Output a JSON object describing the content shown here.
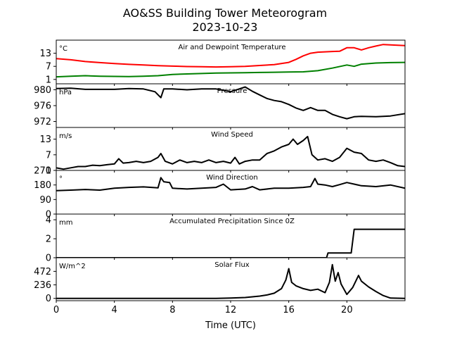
{
  "title": "AO&SS Building Tower Meteorogram",
  "subtitle": "2023-10-23",
  "xlabel": "Time (UTC)",
  "chart_data": {
    "type": "line",
    "x_range": [
      0,
      24
    ],
    "x_ticks": [
      0,
      4,
      8,
      12,
      16,
      20
    ],
    "x_tick_labels": [
      "0",
      "4",
      "8",
      "12",
      "16",
      "20"
    ],
    "panels": [
      {
        "id": "temp",
        "title": "Air and Dewpoint Temperature",
        "unit": "°C",
        "ylim": [
          -1,
          19
        ],
        "yticks": [
          1,
          7,
          13
        ],
        "ytick_labels": [
          "1",
          "7",
          "13"
        ],
        "series": [
          {
            "color": "#ff0000",
            "points": [
              [
                0,
                10.5
              ],
              [
                1,
                10
              ],
              [
                2,
                9.2
              ],
              [
                3,
                8.7
              ],
              [
                4,
                8.3
              ],
              [
                5,
                7.9
              ],
              [
                6,
                7.6
              ],
              [
                7,
                7.3
              ],
              [
                8,
                7.1
              ],
              [
                9,
                6.9
              ],
              [
                10,
                6.8
              ],
              [
                11,
                6.7
              ],
              [
                12,
                6.8
              ],
              [
                13,
                7
              ],
              [
                14,
                7.4
              ],
              [
                15,
                7.8
              ],
              [
                16,
                8.8
              ],
              [
                16.5,
                10.2
              ],
              [
                17,
                11.8
              ],
              [
                17.5,
                13
              ],
              [
                18,
                13.5
              ],
              [
                19,
                13.8
              ],
              [
                19.5,
                13.9
              ],
              [
                20,
                15.5
              ],
              [
                20.5,
                15.5
              ],
              [
                21,
                14.5
              ],
              [
                21.5,
                15.5
              ],
              [
                22,
                16.3
              ],
              [
                22.5,
                17
              ],
              [
                23,
                16.8
              ],
              [
                24,
                16.5
              ]
            ]
          },
          {
            "color": "#008000",
            "points": [
              [
                0,
                2.2
              ],
              [
                1,
                2.5
              ],
              [
                2,
                2.7
              ],
              [
                3,
                2.5
              ],
              [
                4,
                2.4
              ],
              [
                5,
                2.3
              ],
              [
                6,
                2.5
              ],
              [
                7,
                2.7
              ],
              [
                8,
                3.3
              ],
              [
                9,
                3.5
              ],
              [
                10,
                3.7
              ],
              [
                11,
                3.9
              ],
              [
                12,
                4
              ],
              [
                13,
                4.1
              ],
              [
                14,
                4.2
              ],
              [
                15,
                4.3
              ],
              [
                16,
                4.4
              ],
              [
                17,
                4.5
              ],
              [
                18,
                5
              ],
              [
                19,
                6.2
              ],
              [
                20,
                7.6
              ],
              [
                20.5,
                7
              ],
              [
                21,
                8
              ],
              [
                22,
                8.5
              ],
              [
                23,
                8.7
              ],
              [
                24,
                8.8
              ]
            ]
          }
        ]
      },
      {
        "id": "pressure",
        "title": "Pressure",
        "unit": "hPa",
        "ylim": [
          970.5,
          981.5
        ],
        "yticks": [
          972,
          976,
          980
        ],
        "ytick_labels": [
          "972",
          "976",
          "980"
        ],
        "series": [
          {
            "color": "#000000",
            "points": [
              [
                0,
                980.3
              ],
              [
                1,
                980.4
              ],
              [
                2,
                980.1
              ],
              [
                3,
                980.1
              ],
              [
                4,
                980.1
              ],
              [
                5,
                980.3
              ],
              [
                6,
                980.2
              ],
              [
                6.8,
                979.5
              ],
              [
                7.2,
                978
              ],
              [
                7.4,
                980.2
              ],
              [
                8,
                980.2
              ],
              [
                9,
                980
              ],
              [
                10,
                980.2
              ],
              [
                11,
                980.2
              ],
              [
                12,
                979.5
              ],
              [
                12.5,
                980.1
              ],
              [
                13,
                980.7
              ],
              [
                13.5,
                979.6
              ],
              [
                14,
                978.7
              ],
              [
                14.5,
                977.8
              ],
              [
                15,
                977.3
              ],
              [
                15.5,
                977
              ],
              [
                16,
                976.3
              ],
              [
                16.5,
                975.4
              ],
              [
                17,
                974.8
              ],
              [
                17.5,
                975.5
              ],
              [
                18,
                974.8
              ],
              [
                18.5,
                974.8
              ],
              [
                19,
                973.8
              ],
              [
                19.5,
                973.2
              ],
              [
                20,
                972.7
              ],
              [
                20.5,
                973.2
              ],
              [
                21,
                973.3
              ],
              [
                22,
                973.2
              ],
              [
                23,
                973.4
              ],
              [
                24,
                974
              ]
            ]
          }
        ]
      },
      {
        "id": "wind_speed",
        "title": "Wind Speed",
        "unit": "m/s",
        "ylim": [
          1,
          17.5
        ],
        "yticks": [
          1,
          7,
          13
        ],
        "ytick_labels": [
          "1",
          "7",
          "13"
        ],
        "series": [
          {
            "color": "#000000",
            "points": [
              [
                0,
                2
              ],
              [
                0.5,
                1.5
              ],
              [
                1,
                2
              ],
              [
                1.5,
                2.5
              ],
              [
                2,
                2.5
              ],
              [
                2.5,
                3
              ],
              [
                3,
                2.8
              ],
              [
                3.5,
                3.2
              ],
              [
                4,
                3.5
              ],
              [
                4.3,
                5.5
              ],
              [
                4.6,
                3.8
              ],
              [
                5,
                4
              ],
              [
                5.5,
                4.5
              ],
              [
                6,
                4
              ],
              [
                6.5,
                4.5
              ],
              [
                7,
                6
              ],
              [
                7.2,
                7.5
              ],
              [
                7.5,
                4.5
              ],
              [
                8,
                3.5
              ],
              [
                8.5,
                5
              ],
              [
                9,
                4
              ],
              [
                9.5,
                4.5
              ],
              [
                10,
                4
              ],
              [
                10.5,
                5
              ],
              [
                11,
                4
              ],
              [
                11.5,
                4.5
              ],
              [
                12,
                3.8
              ],
              [
                12.3,
                6
              ],
              [
                12.6,
                3.5
              ],
              [
                13,
                4.5
              ],
              [
                13.5,
                5
              ],
              [
                14,
                5
              ],
              [
                14.5,
                7.5
              ],
              [
                15,
                8.5
              ],
              [
                15.5,
                10
              ],
              [
                16,
                11
              ],
              [
                16.3,
                13
              ],
              [
                16.6,
                11
              ],
              [
                17,
                12.5
              ],
              [
                17.3,
                14
              ],
              [
                17.6,
                7
              ],
              [
                18,
                5
              ],
              [
                18.5,
                5.5
              ],
              [
                19,
                4.5
              ],
              [
                19.5,
                6
              ],
              [
                20,
                9.5
              ],
              [
                20.5,
                8
              ],
              [
                21,
                7.5
              ],
              [
                21.5,
                5
              ],
              [
                22,
                4.5
              ],
              [
                22.5,
                5
              ],
              [
                23,
                4
              ],
              [
                23.5,
                2.8
              ],
              [
                24,
                2.5
              ]
            ]
          }
        ]
      },
      {
        "id": "wind_dir",
        "title": "Wind Direction",
        "unit": "°",
        "ylim": [
          0,
          270
        ],
        "yticks": [
          0,
          90,
          180,
          270
        ],
        "ytick_labels": [
          "0",
          "90",
          "180",
          "270"
        ],
        "series": [
          {
            "color": "#000000",
            "points": [
              [
                0,
                145
              ],
              [
                1,
                148
              ],
              [
                2,
                152
              ],
              [
                3,
                148
              ],
              [
                4,
                160
              ],
              [
                5,
                165
              ],
              [
                6,
                168
              ],
              [
                7,
                162
              ],
              [
                7.2,
                225
              ],
              [
                7.4,
                200
              ],
              [
                7.8,
                195
              ],
              [
                8,
                160
              ],
              [
                9,
                155
              ],
              [
                10,
                160
              ],
              [
                11,
                165
              ],
              [
                11.5,
                185
              ],
              [
                12,
                150
              ],
              [
                13,
                155
              ],
              [
                13.5,
                170
              ],
              [
                14,
                150
              ],
              [
                15,
                160
              ],
              [
                16,
                160
              ],
              [
                17,
                165
              ],
              [
                17.5,
                170
              ],
              [
                17.8,
                220
              ],
              [
                18,
                185
              ],
              [
                18.5,
                180
              ],
              [
                19,
                170
              ],
              [
                19.5,
                182
              ],
              [
                20,
                195
              ],
              [
                20.5,
                185
              ],
              [
                21,
                175
              ],
              [
                22,
                170
              ],
              [
                23,
                180
              ],
              [
                24,
                160
              ]
            ]
          }
        ]
      },
      {
        "id": "precip",
        "title": "Accumulated Precipitation Since 0Z",
        "unit": "mm",
        "ylim": [
          0,
          4.6
        ],
        "yticks": [
          0,
          2,
          4
        ],
        "ytick_labels": [
          "0",
          "2",
          "4"
        ],
        "series": [
          {
            "color": "#000000",
            "points": [
              [
                0,
                0
              ],
              [
                18.6,
                0
              ],
              [
                18.7,
                0.5
              ],
              [
                20.3,
                0.5
              ],
              [
                20.5,
                3
              ],
              [
                24,
                3
              ]
            ]
          }
        ]
      },
      {
        "id": "solar",
        "title": "Solar Flux",
        "unit": "W/m^2",
        "ylim": [
          -40,
          710
        ],
        "yticks": [
          0,
          236,
          472
        ],
        "ytick_labels": [
          "0",
          "236",
          "472"
        ],
        "series": [
          {
            "color": "#000000",
            "points": [
              [
                0,
                0
              ],
              [
                11,
                0
              ],
              [
                12,
                5
              ],
              [
                13,
                15
              ],
              [
                14,
                40
              ],
              [
                14.5,
                60
              ],
              [
                15,
                90
              ],
              [
                15.5,
                170
              ],
              [
                15.8,
                320
              ],
              [
                16,
                520
              ],
              [
                16.2,
                280
              ],
              [
                16.5,
                220
              ],
              [
                17,
                170
              ],
              [
                17.5,
                140
              ],
              [
                18,
                160
              ],
              [
                18.5,
                100
              ],
              [
                18.8,
                280
              ],
              [
                19,
                590
              ],
              [
                19.2,
                300
              ],
              [
                19.4,
                450
              ],
              [
                19.6,
                250
              ],
              [
                20,
                70
              ],
              [
                20.4,
                190
              ],
              [
                20.8,
                400
              ],
              [
                21,
                300
              ],
              [
                21.5,
                200
              ],
              [
                22,
                120
              ],
              [
                22.5,
                50
              ],
              [
                23,
                5
              ],
              [
                24,
                0
              ]
            ]
          }
        ]
      }
    ]
  }
}
